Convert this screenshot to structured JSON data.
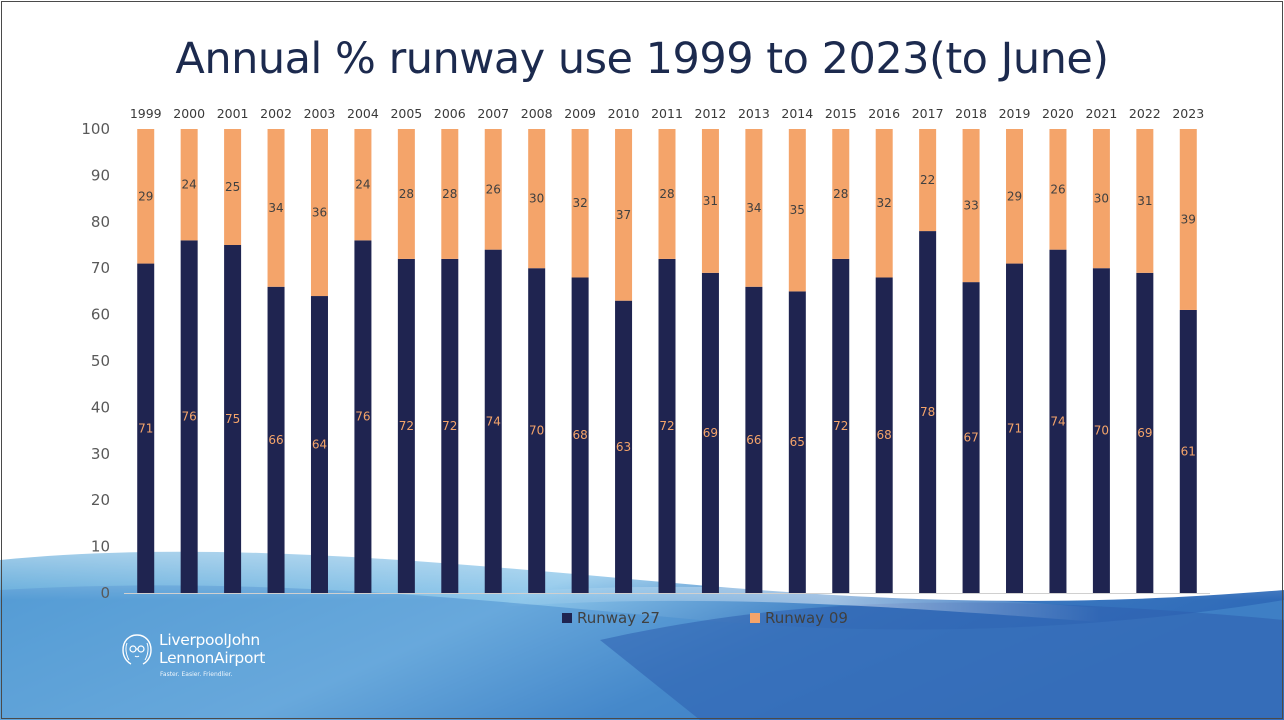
{
  "slide": {
    "title": "Annual % runway use 1999 to 2023(to June)",
    "logo": {
      "line1": "LiverpoolJohn",
      "line2": "LennonAirport",
      "tagline": "Faster. Easier. Friendlier."
    }
  },
  "colors": {
    "runway27": "#1f2450",
    "runway09": "#f4a46a",
    "background_wave": "#3f7fc4"
  },
  "chart_data": {
    "type": "bar",
    "stacked": true,
    "categories": [
      "1999",
      "2000",
      "2001",
      "2002",
      "2003",
      "2004",
      "2005",
      "2006",
      "2007",
      "2008",
      "2009",
      "2010",
      "2011",
      "2012",
      "2013",
      "2014",
      "2015",
      "2016",
      "2017",
      "2018",
      "2019",
      "2020",
      "2021",
      "2022",
      "2023"
    ],
    "series": [
      {
        "name": "Runway 27",
        "color": "#1f2450",
        "values": [
          71,
          76,
          75,
          66,
          64,
          76,
          72,
          72,
          74,
          70,
          68,
          63,
          72,
          69,
          66,
          65,
          72,
          68,
          78,
          67,
          71,
          74,
          70,
          69,
          61
        ]
      },
      {
        "name": "Runway 09",
        "color": "#f4a46a",
        "values": [
          29,
          24,
          25,
          34,
          36,
          24,
          28,
          28,
          26,
          30,
          32,
          37,
          28,
          31,
          34,
          35,
          28,
          32,
          22,
          33,
          29,
          26,
          30,
          31,
          39
        ]
      }
    ],
    "ylim": [
      0,
      100
    ],
    "yticks": [
      "0",
      "10",
      "20",
      "30",
      "40",
      "50",
      "60",
      "70",
      "80",
      "90",
      "100"
    ],
    "x_axis_position": "top",
    "legend_position": "bottom",
    "grid": false,
    "data_labels": true
  }
}
